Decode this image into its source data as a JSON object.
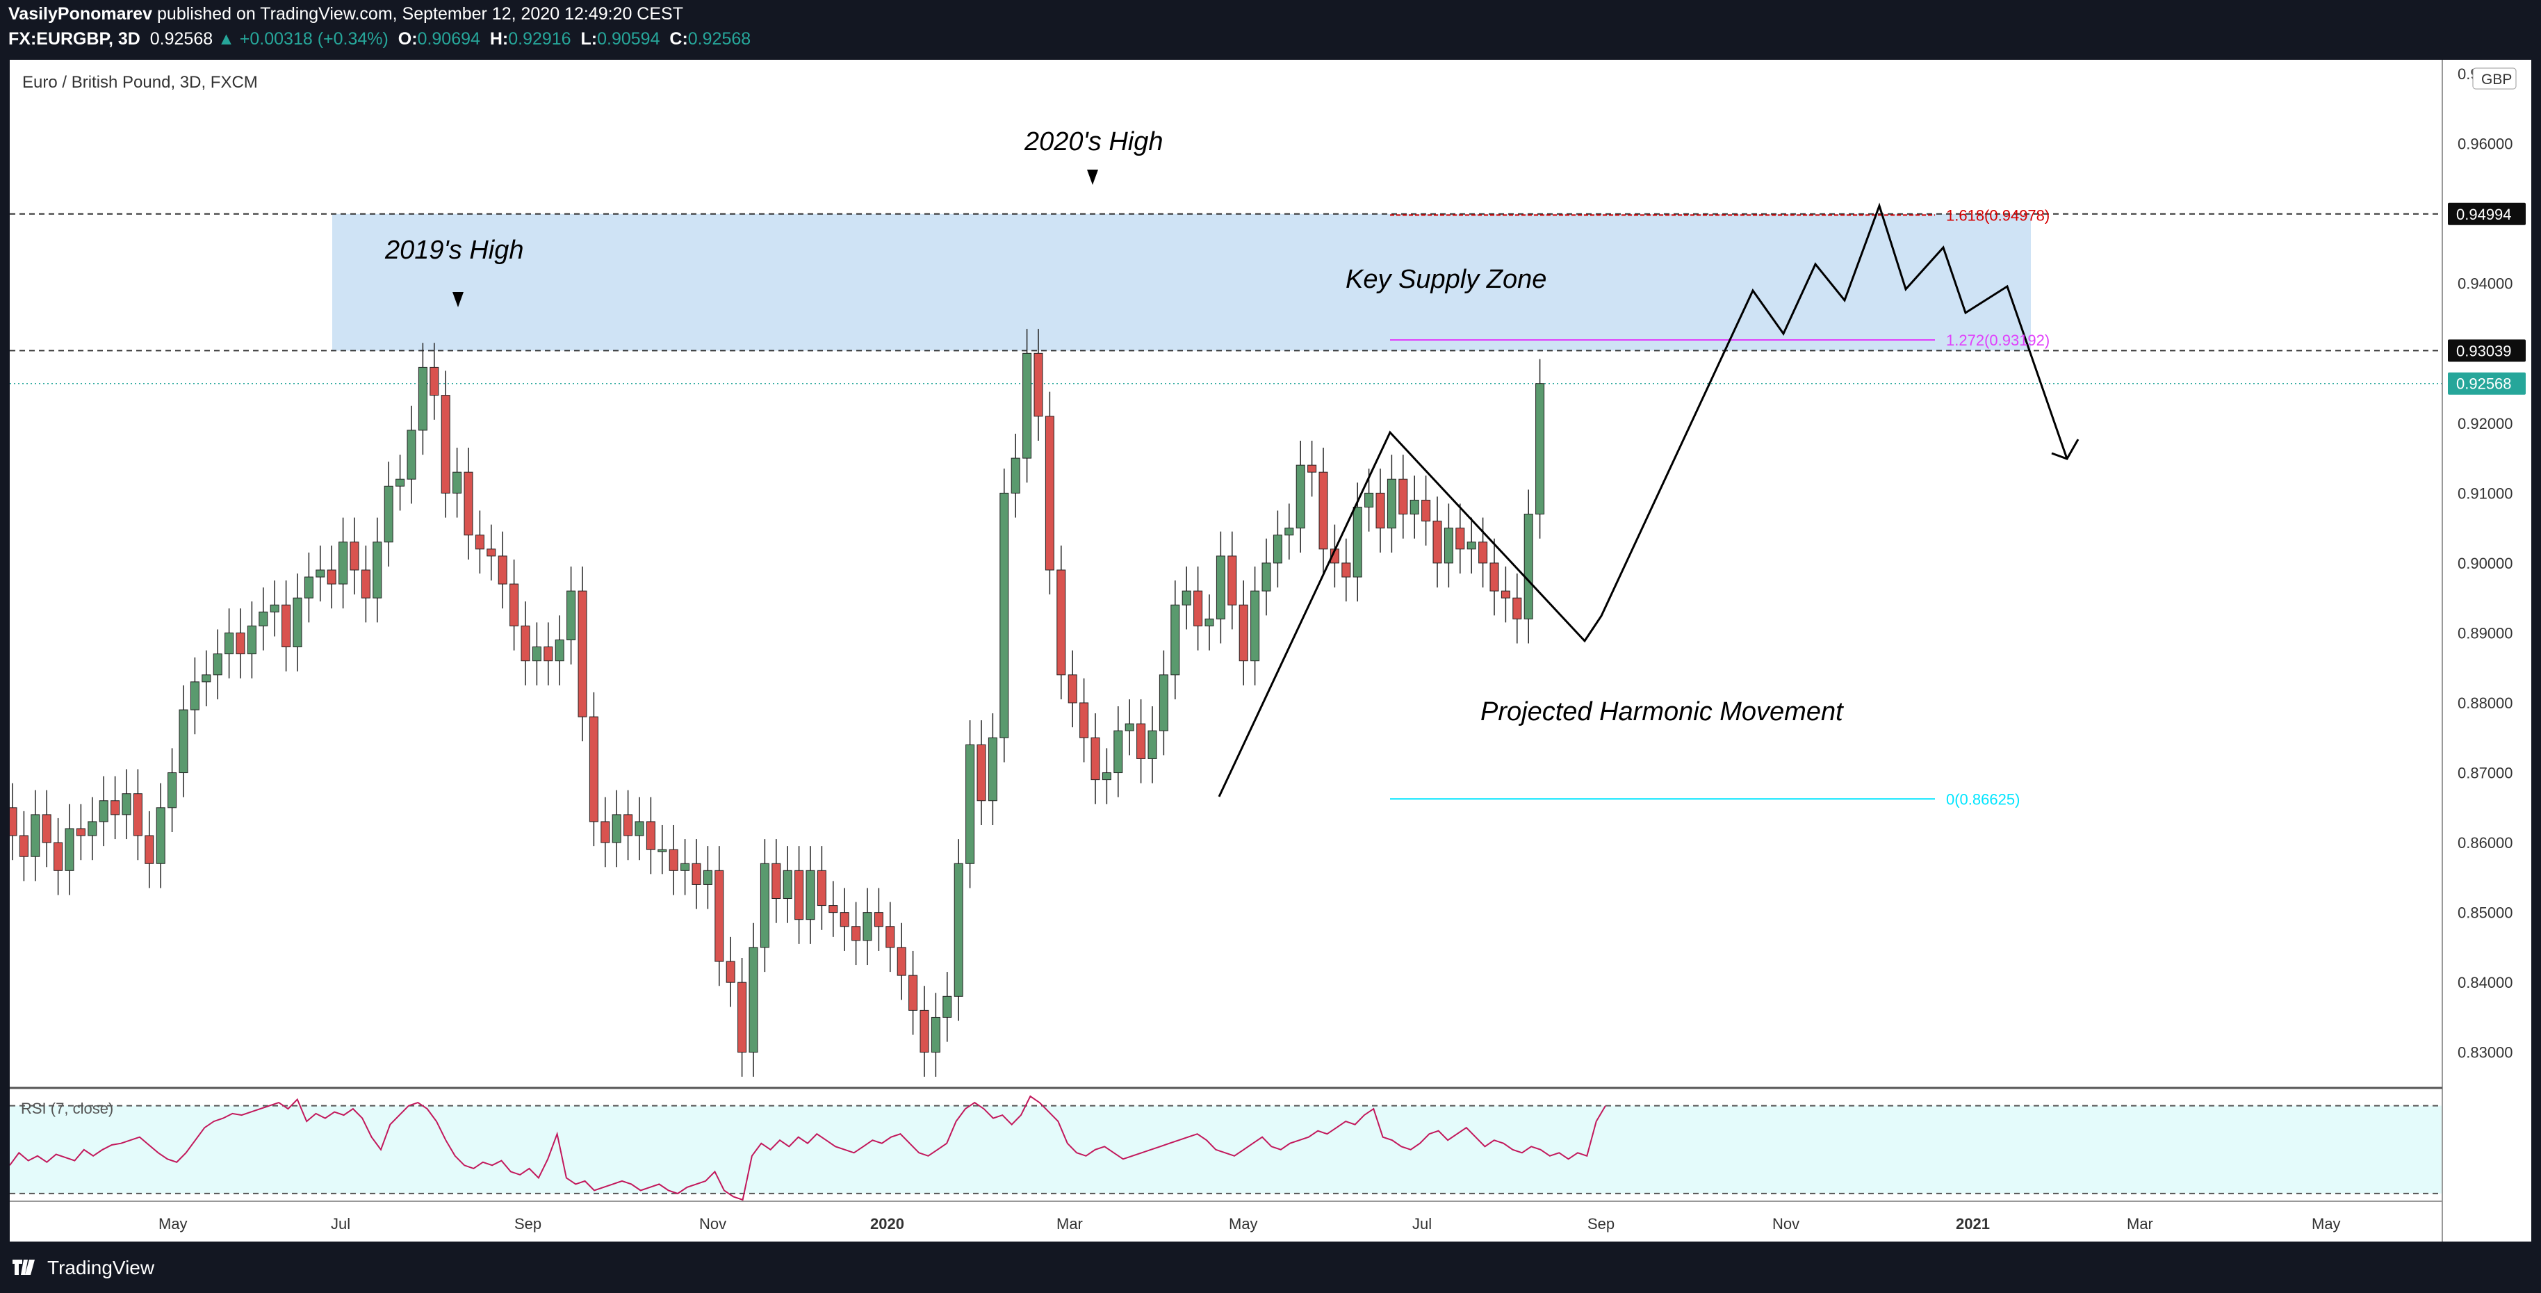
{
  "header": {
    "author": "VasilyPonomarev",
    "published": "published on TradingView.com, September 12, 2020 12:49:20 CEST",
    "symbol": "FX:EURGBP, 3D",
    "last": "0.92568",
    "change": "+0.00318 (+0.34%)",
    "o_label": "O:",
    "o_value": "0.90694",
    "h_label": "H:",
    "h_value": "0.92916",
    "l_label": "L:",
    "l_value": "0.90594",
    "c_label": "C:",
    "c_value": "0.92568"
  },
  "footer": {
    "brand": "TradingView"
  },
  "colors": {
    "up": "#26a69a",
    "down": "#ef5350",
    "candle_up": "#5a9a6e",
    "candle_down": "#d9534f",
    "zone": "#cfe3f5",
    "rsi_fill": "#e4fbfb",
    "rsi_line": "#c2185b",
    "fib_red": "#d50000",
    "fib_magenta": "#e040fb",
    "fib_cyan": "#00e5ff"
  },
  "chart_data": {
    "type": "candlestick",
    "title": "Euro / British Pound, 3D, FXCM",
    "currency": "GBP",
    "ylim": [
      0.825,
      0.972
    ],
    "yticks": [
      "0.97000",
      "0.96000",
      "0.95000",
      "0.94000",
      "0.93000",
      "0.92000",
      "0.91000",
      "0.90000",
      "0.89000",
      "0.88000",
      "0.87000",
      "0.86000",
      "0.85000",
      "0.84000",
      "0.83000"
    ],
    "xticks": [
      "May",
      "Jul",
      "Sep",
      "Nov",
      "2020",
      "Mar",
      "May",
      "Jul",
      "Sep",
      "Nov",
      "2021",
      "Mar",
      "May"
    ],
    "price_labels": [
      {
        "text": "0.94994",
        "value": 0.94994,
        "style": "dark"
      },
      {
        "text": "0.93039",
        "value": 0.93039,
        "style": "dark"
      },
      {
        "text": "0.92568",
        "value": 0.92568,
        "style": "green"
      }
    ],
    "horizontal_lines": [
      0.94994,
      0.93039
    ],
    "current_price": 0.92568,
    "annotations": [
      {
        "text": "2019's High"
      },
      {
        "text": "2020's High"
      },
      {
        "text": "Key Supply Zone"
      },
      {
        "text": "Projected Harmonic Movement"
      }
    ],
    "fib_levels": [
      {
        "text": "1.618(0.94978)",
        "value": 0.94978
      },
      {
        "text": "1.272(0.93192)",
        "value": 0.93192
      },
      {
        "text": "0(0.86625)",
        "value": 0.86625
      }
    ],
    "supply_zone": [
      0.93039,
      0.94994
    ],
    "candles_close_series": [
      0.861,
      0.858,
      0.864,
      0.86,
      0.856,
      0.862,
      0.861,
      0.863,
      0.866,
      0.864,
      0.867,
      0.861,
      0.857,
      0.865,
      0.87,
      0.879,
      0.883,
      0.884,
      0.887,
      0.89,
      0.887,
      0.891,
      0.893,
      0.894,
      0.888,
      0.895,
      0.898,
      0.899,
      0.897,
      0.903,
      0.899,
      0.895,
      0.903,
      0.911,
      0.912,
      0.919,
      0.928,
      0.924,
      0.91,
      0.913,
      0.904,
      0.902,
      0.901,
      0.897,
      0.891,
      0.886,
      0.888,
      0.886,
      0.889,
      0.896,
      0.878,
      0.863,
      0.86,
      0.864,
      0.861,
      0.863,
      0.859,
      0.859,
      0.856,
      0.857,
      0.854,
      0.856,
      0.843,
      0.84,
      0.83,
      0.845,
      0.857,
      0.852,
      0.856,
      0.849,
      0.856,
      0.851,
      0.85,
      0.848,
      0.846,
      0.85,
      0.848,
      0.845,
      0.841,
      0.836,
      0.83,
      0.835,
      0.838,
      0.857,
      0.874,
      0.866,
      0.875,
      0.91,
      0.915,
      0.93,
      0.921,
      0.899,
      0.884,
      0.88,
      0.875,
      0.869,
      0.87,
      0.876,
      0.877,
      0.872,
      0.876,
      0.884,
      0.894,
      0.896,
      0.891,
      0.892,
      0.901,
      0.894,
      0.886,
      0.896,
      0.9,
      0.904,
      0.905,
      0.914,
      0.913,
      0.902,
      0.9,
      0.898,
      0.908,
      0.91,
      0.905,
      0.912,
      0.907,
      0.909,
      0.906,
      0.9,
      0.905,
      0.902,
      0.903,
      0.9,
      0.896,
      0.895,
      0.892,
      0.907,
      0.92568
    ],
    "rsi": {
      "label": "RSI (7, close)",
      "levels": [
        "80.00",
        "40.00"
      ],
      "upper": 80,
      "lower": 40,
      "ylim": [
        20,
        90
      ],
      "values": [
        42,
        50,
        45,
        48,
        44,
        49,
        47,
        45,
        52,
        48,
        52,
        55,
        56,
        58,
        60,
        55,
        50,
        46,
        44,
        50,
        58,
        66,
        70,
        72,
        75,
        74,
        76,
        78,
        80,
        82,
        78,
        84,
        70,
        75,
        72,
        76,
        74,
        78,
        72,
        60,
        52,
        68,
        74,
        80,
        82,
        78,
        70,
        58,
        48,
        42,
        40,
        44,
        42,
        45,
        38,
        36,
        40,
        34,
        46,
        62,
        34,
        30,
        32,
        26,
        28,
        30,
        32,
        30,
        26,
        28,
        30,
        26,
        24,
        28,
        30,
        32,
        38,
        26,
        22,
        20,
        48,
        56,
        52,
        58,
        54,
        60,
        56,
        62,
        58,
        54,
        52,
        50,
        54,
        58,
        56,
        60,
        62,
        56,
        50,
        48,
        52,
        56,
        70,
        78,
        82,
        78,
        72,
        74,
        68,
        74,
        86,
        82,
        76,
        70,
        56,
        50,
        48,
        52,
        54,
        50,
        46,
        48,
        50,
        52,
        54,
        56,
        58,
        60,
        62,
        58,
        52,
        50,
        48,
        52,
        56,
        60,
        54,
        52,
        56,
        58,
        60,
        64,
        62,
        66,
        70,
        68,
        74,
        78,
        60,
        58,
        54,
        52,
        56,
        62,
        64,
        58,
        62,
        66,
        60,
        54,
        58,
        56,
        52,
        50,
        54,
        52,
        48,
        50,
        46,
        50,
        48,
        70,
        80
      ]
    }
  }
}
